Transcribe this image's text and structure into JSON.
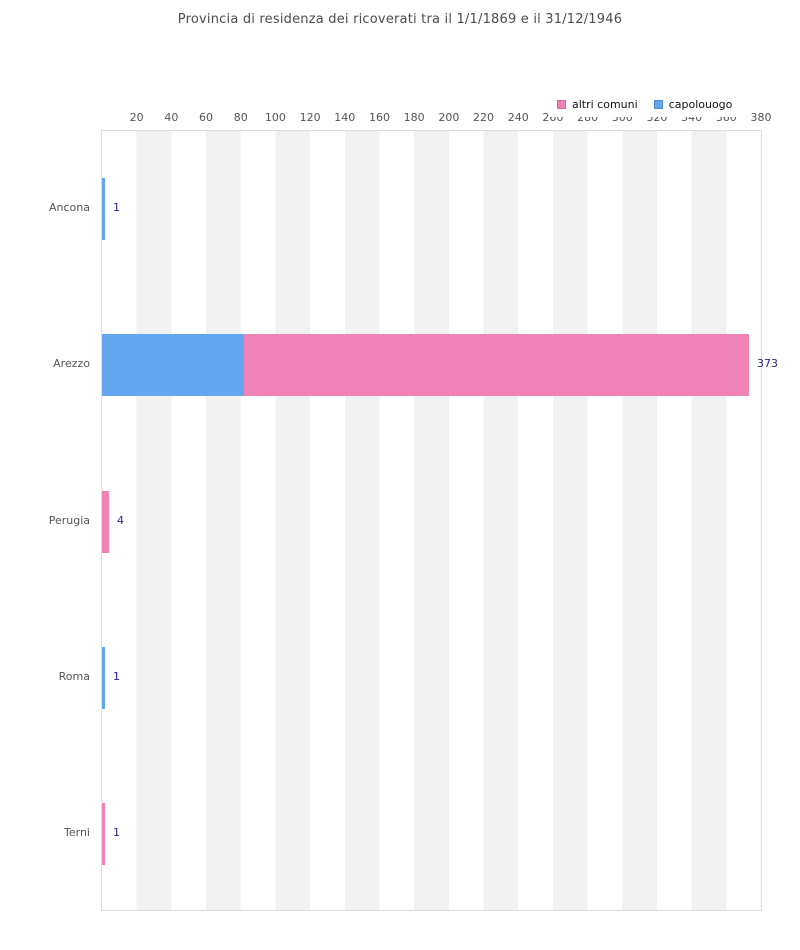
{
  "title": "Provincia di residenza dei ricoverati tra il 1/1/1869 e il 31/12/1946",
  "legend": [
    {
      "label": "altri comuni",
      "color": "#f083b5",
      "border": "#d9659e"
    },
    {
      "label": "capolouogo",
      "color": "#64a6f0",
      "border": "#4a8ad0"
    }
  ],
  "colors": {
    "bar_pink": "#f083b5",
    "bar_blue": "#64a6f0",
    "value_label": "#26268c",
    "axis_text": "#555555",
    "title_text": "#4d4d4d",
    "band_gray": "#f2f2f2",
    "plot_border": "#dddddd"
  },
  "chart_data": {
    "type": "bar",
    "orientation": "horizontal",
    "stacked": true,
    "title": "Provincia di residenza dei ricoverati tra il 1/1/1869 e il 31/12/1946",
    "categories": [
      "Ancona",
      "Arezzo",
      "Perugia",
      "Roma",
      "Terni"
    ],
    "series": [
      {
        "name": "altri comuni",
        "color": "#f083b5",
        "values": [
          0,
          291,
          4,
          0,
          1
        ]
      },
      {
        "name": "capolouogo",
        "color": "#64a6f0",
        "values": [
          1,
          82,
          0,
          1,
          0
        ]
      }
    ],
    "stack_order": [
      "capolouogo",
      "altri comuni"
    ],
    "totals": [
      1,
      373,
      4,
      1,
      1
    ],
    "total_labels": [
      "1",
      "373",
      "4",
      "1",
      "1"
    ],
    "x_ticks": [
      20,
      40,
      60,
      80,
      100,
      120,
      140,
      160,
      180,
      200,
      220,
      240,
      260,
      280,
      300,
      320,
      340,
      360,
      380
    ],
    "xlim": [
      0,
      380
    ],
    "xlabel": "",
    "ylabel": "",
    "legend_position": "top-right",
    "grid": "alternating vertical bands every 20 units"
  }
}
